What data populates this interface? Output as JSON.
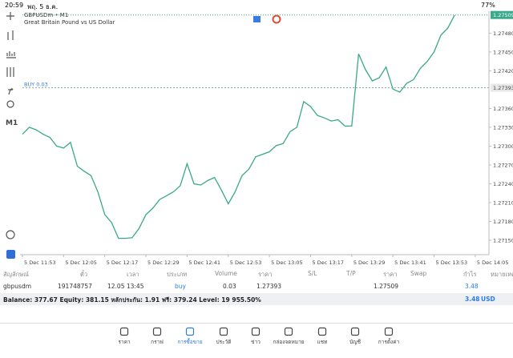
{
  "status_bar": {
    "time": "20:59",
    "date": "พฤ. 5 ธ.ค.",
    "battery": "77%"
  },
  "chart_data": {
    "type": "line",
    "title": "GBPUSDm • M1",
    "subtitle": "Great Britain Pound vs US Dollar",
    "timeframe": "M1",
    "color": "#3aa88a",
    "x": [
      "5 Dec 11:53",
      "5 Dec 11:55",
      "5 Dec 11:57",
      "5 Dec 11:59",
      "5 Dec 12:01",
      "5 Dec 12:03",
      "5 Dec 12:05",
      "5 Dec 12:07",
      "5 Dec 12:09",
      "5 Dec 12:11",
      "5 Dec 12:13",
      "5 Dec 12:15",
      "5 Dec 12:17",
      "5 Dec 12:19",
      "5 Dec 12:21",
      "5 Dec 12:23",
      "5 Dec 12:25",
      "5 Dec 12:27",
      "5 Dec 12:29",
      "5 Dec 12:31",
      "5 Dec 12:33",
      "5 Dec 12:35",
      "5 Dec 12:37",
      "5 Dec 12:39",
      "5 Dec 12:41",
      "5 Dec 12:43",
      "5 Dec 12:45",
      "5 Dec 12:47",
      "5 Dec 12:49",
      "5 Dec 12:51",
      "5 Dec 12:53",
      "5 Dec 12:55",
      "5 Dec 12:57",
      "5 Dec 12:59",
      "5 Dec 13:01",
      "5 Dec 13:03",
      "5 Dec 13:05",
      "5 Dec 13:07",
      "5 Dec 13:09",
      "5 Dec 13:11",
      "5 Dec 13:13",
      "5 Dec 13:15",
      "5 Dec 13:17",
      "5 Dec 13:19",
      "5 Dec 13:21",
      "5 Dec 13:23",
      "5 Dec 13:25",
      "5 Dec 13:27",
      "5 Dec 13:29",
      "5 Dec 13:31",
      "5 Dec 13:33",
      "5 Dec 13:35",
      "5 Dec 13:37",
      "5 Dec 13:39",
      "5 Dec 13:41",
      "5 Dec 13:43",
      "5 Dec 13:45",
      "5 Dec 13:47",
      "5 Dec 13:49",
      "5 Dec 13:51",
      "5 Dec 13:53",
      "5 Dec 13:55",
      "5 Dec 13:57",
      "5 Dec 13:59"
    ],
    "values": [
      1.27319,
      1.2733,
      1.27326,
      1.27319,
      1.27314,
      1.273,
      1.27297,
      1.27306,
      1.27268,
      1.2726,
      1.27253,
      1.27227,
      1.27191,
      1.27178,
      1.27153,
      1.27153,
      1.27154,
      1.27169,
      1.27191,
      1.27201,
      1.27215,
      1.27221,
      1.27227,
      1.27237,
      1.27272,
      1.2724,
      1.27238,
      1.27245,
      1.2725,
      1.2723,
      1.27208,
      1.27227,
      1.27253,
      1.27263,
      1.27283,
      1.27287,
      1.27291,
      1.27301,
      1.27304,
      1.27323,
      1.2733,
      1.27371,
      1.27363,
      1.27349,
      1.27345,
      1.2734,
      1.27342,
      1.27332,
      1.27332,
      1.27447,
      1.27422,
      1.27404,
      1.27409,
      1.27426,
      1.27391,
      1.27386,
      1.274,
      1.27406,
      1.27424,
      1.27435,
      1.2745,
      1.27477,
      1.27488,
      1.27509
    ],
    "xlim": [
      "5 Dec 11:53",
      "5 Dec 14:09"
    ],
    "xticks": [
      "5 Dec 11:53",
      "5 Dec 12:05",
      "5 Dec 12:17",
      "5 Dec 12:29",
      "5 Dec 12:41",
      "5 Dec 12:53",
      "5 Dec 13:05",
      "5 Dec 13:17",
      "5 Dec 13:29",
      "5 Dec 13:41",
      "5 Dec 13:53",
      "5 Dec 14:05"
    ],
    "ylim": [
      1.27127,
      1.27515
    ],
    "yticks": [
      {
        "value": 1.2715,
        "label": "1.27150"
      },
      {
        "value": 1.2718,
        "label": "1.27180"
      },
      {
        "value": 1.2721,
        "label": "1.27210"
      },
      {
        "value": 1.2724,
        "label": "1.27240"
      },
      {
        "value": 1.2727,
        "label": "1.27270"
      },
      {
        "value": 1.273,
        "label": "1.27300"
      },
      {
        "value": 1.2733,
        "label": "1.27330"
      },
      {
        "value": 1.2736,
        "label": "1.27360"
      },
      {
        "value": 1.2742,
        "label": "1.27420"
      },
      {
        "value": 1.2745,
        "label": "1.27450"
      },
      {
        "value": 1.2748,
        "label": "1.27480"
      }
    ],
    "order_line": {
      "label": "BUY 0.03",
      "value": 1.27393,
      "value_label": "1.27393"
    },
    "current_price": {
      "value": 1.27509,
      "label": "1.27509"
    }
  },
  "trades": {
    "header": [
      "สัญลักษณ์",
      "ตั๋ว",
      "เวลา",
      "ประเภท",
      "Volume",
      "ราคา",
      "S/L",
      "T/P",
      "ราคา",
      "Swap",
      "กำไร",
      "หมายเหตุ"
    ],
    "rows": [
      [
        "gbpusdm",
        "191748757",
        "12.05 13:45",
        "buy",
        "0.03",
        "1.27393",
        "",
        "",
        "1.27509",
        "",
        "3.48",
        ""
      ]
    ]
  },
  "account": {
    "summary": "Balance: 377.67 Equity: 381.15 หลักประกัน: 1.91 ฟรี: 379.24 Level: 19 955.50%",
    "profit": "3.48",
    "currency": "USD"
  },
  "tabs": [
    "ราคา",
    "กราฟ",
    "การซื้อขาย",
    "ประวัติ",
    "ข่าว",
    "กล่องจดหมาย",
    "แชท",
    "บัญชี",
    "การตั้งค่า"
  ]
}
